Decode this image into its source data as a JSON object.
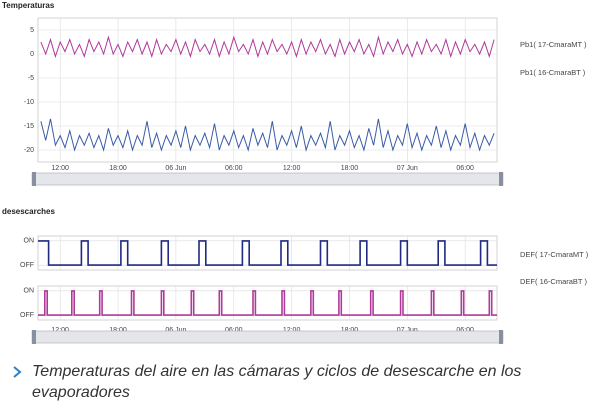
{
  "chart_data": [
    {
      "type": "line",
      "title": "Temperaturas",
      "xlim": [
        9.7,
        57.3
      ],
      "xticks": [
        {
          "value": 12,
          "label": "12:00"
        },
        {
          "value": 18,
          "label": "18:00"
        },
        {
          "value": 24,
          "label": "06 Jun"
        },
        {
          "value": 30,
          "label": "06:00"
        },
        {
          "value": 36,
          "label": "12:00"
        },
        {
          "value": 42,
          "label": "18:00"
        },
        {
          "value": 48,
          "label": "07 Jun"
        },
        {
          "value": 54,
          "label": "06:00"
        }
      ],
      "ylim": [
        -22.5,
        7.5
      ],
      "yticks": [
        5,
        0,
        -5,
        -10,
        -15,
        -20
      ],
      "grid": true,
      "series": [
        {
          "name": "Pb1( 17-CmaraMT )",
          "color": "#b0399b",
          "x": [
            10,
            10.5,
            11,
            11.5,
            12,
            12.5,
            13,
            13.5,
            14,
            14.5,
            15,
            15.5,
            16,
            16.5,
            17,
            17.5,
            18,
            18.5,
            19,
            19.5,
            20,
            20.5,
            21,
            21.5,
            22,
            22.5,
            23,
            23.5,
            24,
            24.5,
            25,
            25.5,
            26,
            26.5,
            27,
            27.5,
            28,
            28.5,
            29,
            29.5,
            30,
            30.5,
            31,
            31.5,
            32,
            32.5,
            33,
            33.5,
            34,
            34.5,
            35,
            35.5,
            36,
            36.5,
            37,
            37.5,
            38,
            38.5,
            39,
            39.5,
            40,
            40.5,
            41,
            41.5,
            42,
            42.5,
            43,
            43.5,
            44,
            44.5,
            45,
            45.5,
            46,
            46.5,
            47,
            47.5,
            48,
            48.5,
            49,
            49.5,
            50,
            50.5,
            51,
            51.5,
            52,
            52.5,
            53,
            53.5,
            54,
            54.5,
            55,
            55.5,
            56,
            56.5,
            57
          ],
          "values": [
            2.5,
            0,
            3,
            -0.5,
            2.5,
            0.5,
            3,
            0,
            2,
            -0.5,
            3,
            0.5,
            2.5,
            0,
            3.5,
            0,
            2,
            -0.5,
            2.5,
            0.5,
            3,
            0,
            2.5,
            -0.5,
            3,
            0,
            2,
            0.5,
            3,
            0,
            2.5,
            -0.5,
            3,
            0.5,
            2,
            0,
            3,
            -0.5,
            2.5,
            0,
            3.5,
            0.5,
            2,
            0,
            3,
            -0.5,
            2.5,
            0,
            3,
            0.5,
            2,
            0,
            2.5,
            -0.5,
            3,
            0,
            2.5,
            0.5,
            3,
            0,
            2,
            -0.5,
            3,
            0,
            2.5,
            0.5,
            3,
            0,
            2,
            -0.5,
            3.5,
            0,
            2.5,
            0.5,
            3,
            0,
            2,
            -0.5,
            2.5,
            0,
            3,
            0.5,
            2,
            0,
            3,
            -0.5,
            2.5,
            0,
            3,
            0.5,
            2,
            0,
            2.5,
            -0.5,
            3
          ]
        },
        {
          "name": "Pb1( 16-CmaraBT )",
          "color": "#3a5ba8",
          "x": [
            10,
            10.5,
            11,
            11.5,
            12,
            12.5,
            13,
            13.5,
            14,
            14.5,
            15,
            15.5,
            16,
            16.5,
            17,
            17.5,
            18,
            18.5,
            19,
            19.5,
            20,
            20.5,
            21,
            21.5,
            22,
            22.5,
            23,
            23.5,
            24,
            24.5,
            25,
            25.5,
            26,
            26.5,
            27,
            27.5,
            28,
            28.5,
            29,
            29.5,
            30,
            30.5,
            31,
            31.5,
            32,
            32.5,
            33,
            33.5,
            34,
            34.5,
            35,
            35.5,
            36,
            36.5,
            37,
            37.5,
            38,
            38.5,
            39,
            39.5,
            40,
            40.5,
            41,
            41.5,
            42,
            42.5,
            43,
            43.5,
            44,
            44.5,
            45,
            45.5,
            46,
            46.5,
            47,
            47.5,
            48,
            48.5,
            49,
            49.5,
            50,
            50.5,
            51,
            51.5,
            52,
            52.5,
            53,
            53.5,
            54,
            54.5,
            55,
            55.5,
            56,
            56.5,
            57
          ],
          "values": [
            -14,
            -18,
            -13.5,
            -19,
            -17,
            -19.5,
            -16,
            -20,
            -17,
            -19,
            -16.5,
            -19.5,
            -17,
            -20,
            -15.5,
            -19,
            -17,
            -19.5,
            -16,
            -20,
            -17,
            -19,
            -14,
            -19.5,
            -16.5,
            -20,
            -17,
            -19,
            -16,
            -19.5,
            -15,
            -20,
            -17,
            -19,
            -16.5,
            -19.5,
            -14.5,
            -20,
            -17,
            -19,
            -16,
            -19.5,
            -17,
            -20,
            -15.5,
            -19,
            -16.5,
            -19.5,
            -14,
            -20,
            -17,
            -19,
            -16,
            -19.5,
            -15,
            -20,
            -17,
            -19,
            -16.5,
            -19.5,
            -14,
            -20,
            -17,
            -19,
            -16,
            -19.5,
            -17,
            -20,
            -15.5,
            -19,
            -13.5,
            -19.5,
            -16,
            -20,
            -17,
            -19,
            -14.5,
            -19.5,
            -16.5,
            -20,
            -17,
            -19,
            -15,
            -19.5,
            -16,
            -20,
            -17,
            -19,
            -14.5,
            -19.5,
            -16.5,
            -20,
            -17,
            -19,
            -16.5
          ]
        }
      ]
    },
    {
      "type": "step",
      "title": "desescarches",
      "xlim": [
        9.7,
        57.3
      ],
      "xticks": [
        {
          "value": 12,
          "label": "12:00"
        },
        {
          "value": 18,
          "label": "18:00"
        },
        {
          "value": 24,
          "label": "06 Jun"
        },
        {
          "value": 30,
          "label": "06:00"
        },
        {
          "value": 36,
          "label": "12:00"
        },
        {
          "value": 42,
          "label": "18:00"
        },
        {
          "value": 48,
          "label": "07 Jun"
        },
        {
          "value": 54,
          "label": "06:00"
        }
      ],
      "ylim": [
        -0.2,
        1.2
      ],
      "yticks": [
        {
          "value": 1,
          "label": "ON"
        },
        {
          "value": 0,
          "label": "OFF"
        }
      ],
      "grid": true,
      "series": [
        {
          "name": "DEF( 17-CmaraMT )",
          "color": "#1f2a80",
          "x": [
            9.7,
            10.8,
            14.2,
            14.9,
            18.3,
            19.0,
            22.5,
            23.2,
            26.4,
            27.1,
            30.9,
            31.6,
            34.9,
            35.6,
            39.0,
            39.7,
            43.1,
            43.8,
            47.3,
            48.0,
            51.2,
            51.9,
            55.6,
            56.3,
            57.3
          ],
          "values": [
            1,
            0,
            1,
            0,
            1,
            0,
            1,
            0,
            1,
            0,
            1,
            0,
            1,
            0,
            1,
            0,
            1,
            0,
            1,
            0,
            1,
            0,
            1,
            0,
            0
          ]
        },
        {
          "name": "DEF( 16-CmaraBT )",
          "color": "#b0399b",
          "x": [
            9.7,
            10.4,
            10.65,
            13.2,
            13.45,
            16.1,
            16.35,
            19.4,
            19.65,
            22.5,
            22.75,
            25.6,
            25.85,
            28.5,
            28.75,
            32.0,
            32.25,
            35.0,
            35.25,
            38.0,
            38.25,
            40.9,
            41.15,
            44.2,
            44.45,
            47.3,
            47.55,
            50.5,
            50.75,
            53.6,
            53.85,
            56.5,
            56.75,
            57.3
          ],
          "values": [
            0,
            1,
            0,
            1,
            0,
            1,
            0,
            1,
            0,
            1,
            0,
            1,
            0,
            1,
            0,
            1,
            0,
            1,
            0,
            1,
            0,
            1,
            0,
            1,
            0,
            1,
            0,
            1,
            0,
            1,
            0,
            1,
            0,
            0
          ]
        }
      ]
    }
  ],
  "caption": "Temperaturas del aire en las cámaras y ciclos de desescarche en los evaporadores"
}
